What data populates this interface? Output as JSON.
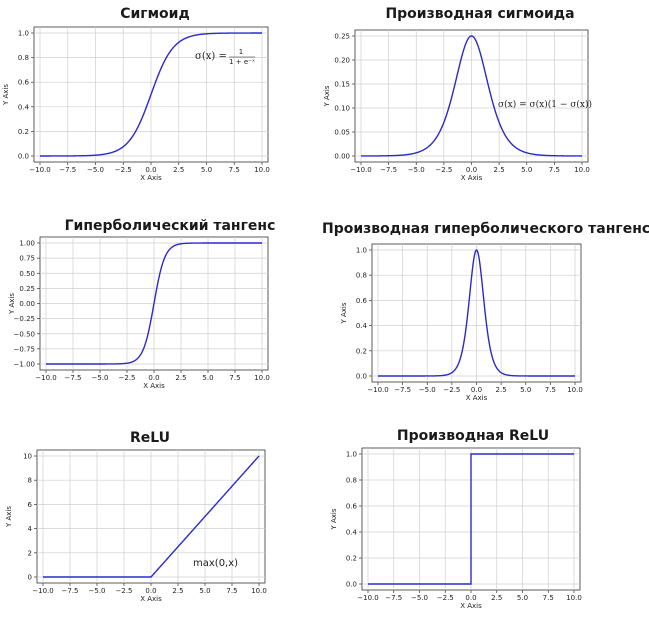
{
  "chart_data": [
    {
      "id": "sigmoid",
      "type": "line",
      "title": "Сигмоид",
      "xlabel": "X Axis",
      "ylabel": "Y Axis",
      "xlim": [
        -10,
        10
      ],
      "ylim": [
        0,
        1
      ],
      "xticks": [
        "−10.0",
        "−7.5",
        "−5.0",
        "−2.5",
        "0.0",
        "2.5",
        "5.0",
        "7.5",
        "10.0"
      ],
      "yticks": [
        "0.0",
        "0.2",
        "0.4",
        "0.6",
        "0.8",
        "1.0"
      ],
      "grid": true,
      "function": "sigmoid",
      "line_color": "#2a2acc",
      "annotation": {
        "main": "σ(x) =",
        "numerator": "1",
        "denominator": "1 + e⁻ˣ"
      }
    },
    {
      "id": "sigmoid-derivative",
      "type": "line",
      "title": "Производная сигмоида",
      "xlabel": "X Axis",
      "ylabel": "Y Axis",
      "xlim": [
        -10,
        10
      ],
      "ylim": [
        0,
        0.25
      ],
      "xticks": [
        "−10.0",
        "−7.5",
        "−5.0",
        "−2.5",
        "0.0",
        "2.5",
        "5.0",
        "7.5",
        "10.0"
      ],
      "yticks": [
        "0.00",
        "0.05",
        "0.10",
        "0.15",
        "0.20",
        "0.25"
      ],
      "grid": true,
      "function": "dsigmoid",
      "line_color": "#2a2acc",
      "annotation": {
        "main": "σ(x) = σ(x)(1 − σ(x))"
      }
    },
    {
      "id": "tanh",
      "type": "line",
      "title": "Гиперболический тангенс",
      "xlabel": "X Axis",
      "ylabel": "Y Axis",
      "xlim": [
        -10,
        10
      ],
      "ylim": [
        -1,
        1
      ],
      "xticks": [
        "−10.0",
        "−7.5",
        "−5.0",
        "−2.5",
        "0.0",
        "2.5",
        "5.0",
        "7.5",
        "10.0"
      ],
      "yticks": [
        "−1.00",
        "−0.75",
        "−0.50",
        "−0.25",
        "0.00",
        "0.25",
        "0.50",
        "0.75",
        "1.00"
      ],
      "grid": true,
      "function": "tanh",
      "line_color": "#2a2acc"
    },
    {
      "id": "tanh-derivative",
      "type": "line",
      "title": "Производная гиперболического тангенса",
      "xlabel": "X Axis",
      "ylabel": "Y Axis",
      "xlim": [
        -10,
        10
      ],
      "ylim": [
        0,
        1
      ],
      "xticks": [
        "−10.0",
        "−7.5",
        "−5.0",
        "−2.5",
        "0.0",
        "2.5",
        "5.0",
        "7.5",
        "10.0"
      ],
      "yticks": [
        "0.0",
        "0.2",
        "0.4",
        "0.6",
        "0.8",
        "1.0"
      ],
      "grid": true,
      "function": "dtanh",
      "line_color": "#2a2acc"
    },
    {
      "id": "relu",
      "type": "line",
      "title": "ReLU",
      "xlabel": "X Axis",
      "ylabel": "Y Axis",
      "xlim": [
        -10,
        10
      ],
      "ylim": [
        0,
        10
      ],
      "xticks": [
        "−10.0",
        "−7.5",
        "−5.0",
        "−2.5",
        "0.0",
        "2.5",
        "5.0",
        "7.5",
        "10.0"
      ],
      "yticks": [
        "0",
        "2",
        "4",
        "6",
        "8",
        "10"
      ],
      "grid": true,
      "function": "relu",
      "line_color": "#2a2acc",
      "annotation": {
        "main": "max(0,x)"
      }
    },
    {
      "id": "relu-derivative",
      "type": "line",
      "title": "Производная ReLU",
      "xlabel": "X Axis",
      "ylabel": "Y Axis",
      "xlim": [
        -10,
        10
      ],
      "ylim": [
        0,
        1
      ],
      "xticks": [
        "−10.0",
        "−7.5",
        "−5.0",
        "−2.5",
        "0.0",
        "2.5",
        "5.0",
        "7.5",
        "10.0"
      ],
      "yticks": [
        "0.0",
        "0.2",
        "0.4",
        "0.6",
        "0.8",
        "1.0"
      ],
      "grid": true,
      "function": "drelu",
      "line_color": "#2a2acc"
    }
  ]
}
